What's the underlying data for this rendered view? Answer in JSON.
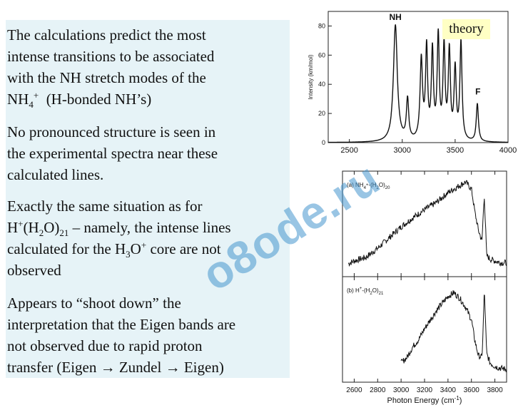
{
  "text": {
    "p1_line1": "The calculations predict the most",
    "p1_line2": "intense transitions to be associated",
    "p1_line3": "with the NH stretch modes of the",
    "p1_nh": "NH",
    "p1_sub4": "4",
    "p1_plus": "+",
    "p1_rest": "(H-bonded NH’s)",
    "p2_line1": "No pronounced structure is seen in",
    "p2_line2": "the experimental spectra near these",
    "p2_line3": "calculated lines.",
    "p3_line1": "Exactly the same situation as for",
    "p3_h": "H",
    "p3_plus": "+",
    "p3_h2o": "(H",
    "p3_sub2": "2",
    "p3_o": "O)",
    "p3_sub21": "21",
    "p3_tail": " – namely, the intense lines",
    "p3_l3a": "calculated for the H",
    "p3_l3sub": "3",
    "p3_l3o": "O",
    "p3_l3sup": "+",
    "p3_l3b": " core are not",
    "p3_line4": "observed",
    "p4_line1": "Appears to “shoot down” the",
    "p4_line2": "interpretation that the Eigen bands are",
    "p4_line3": "not observed due to rapid proton",
    "p4_line4": "transfer (Eigen → Zundel → Eigen)"
  },
  "watermark": "o8ode.ru",
  "theory_label": "theory",
  "chart_data": [
    {
      "type": "line",
      "ylabel": "Intensity (km/mol)",
      "xlim": [
        2300,
        4000
      ],
      "ylim": [
        0,
        90
      ],
      "xticks": [
        "2500",
        "3000",
        "3500",
        "4000"
      ],
      "yticks": [
        "0",
        "20",
        "40",
        "60",
        "80"
      ],
      "annotations": [
        "NH",
        "F"
      ],
      "peaks": [
        {
          "x": 2935,
          "y": 80,
          "w": 22
        },
        {
          "x": 3050,
          "y": 28,
          "w": 13
        },
        {
          "x": 3180,
          "y": 55,
          "w": 14
        },
        {
          "x": 3230,
          "y": 62,
          "w": 12
        },
        {
          "x": 3285,
          "y": 60,
          "w": 12
        },
        {
          "x": 3340,
          "y": 70,
          "w": 12
        },
        {
          "x": 3395,
          "y": 63,
          "w": 12
        },
        {
          "x": 3445,
          "y": 60,
          "w": 12
        },
        {
          "x": 3500,
          "y": 48,
          "w": 12
        },
        {
          "x": 3555,
          "y": 67,
          "w": 12
        },
        {
          "x": 3710,
          "y": 26,
          "w": 12
        }
      ]
    },
    {
      "type": "line",
      "series": [
        {
          "name": "NH4+-(H2O)20",
          "x": [
            2550,
            2600,
            2700,
            2800,
            2900,
            3000,
            3100,
            3200,
            3300,
            3400,
            3450,
            3500,
            3550,
            3600,
            3630,
            3660,
            3690,
            3700,
            3710,
            3730,
            3760,
            3800,
            3850,
            3900
          ],
          "y": [
            0.05,
            0.08,
            0.12,
            0.22,
            0.34,
            0.46,
            0.56,
            0.65,
            0.73,
            0.84,
            0.88,
            0.92,
            0.96,
            0.88,
            0.62,
            0.42,
            0.3,
            0.58,
            0.8,
            0.14,
            0.1,
            0.08,
            0.06,
            0.06
          ]
        },
        {
          "name": "H+-(H2O)21",
          "x": [
            3000,
            3050,
            3100,
            3150,
            3200,
            3250,
            3300,
            3350,
            3400,
            3450,
            3500,
            3550,
            3600,
            3630,
            3660,
            3690,
            3700,
            3710,
            3730,
            3760,
            3800,
            3850,
            3900
          ],
          "y": [
            0.12,
            0.18,
            0.3,
            0.38,
            0.5,
            0.6,
            0.7,
            0.78,
            0.86,
            0.9,
            0.84,
            0.74,
            0.6,
            0.36,
            0.2,
            0.18,
            0.5,
            0.94,
            0.22,
            0.12,
            0.08,
            0.06,
            0.05
          ]
        }
      ],
      "panel_a_label": "(a)",
      "panel_a_name": "NH",
      "panel_a_sub": "4",
      "panel_a_sup": "+",
      "panel_a_rest": "-(H",
      "panel_a_sub2": "2",
      "panel_a_rest2": "O)",
      "panel_a_sub3": "20",
      "panel_b_label": "(b)",
      "panel_b_name": "H",
      "panel_b_sup": "+",
      "panel_b_rest": "-(H",
      "panel_b_sub2": "2",
      "panel_b_rest2": "O)",
      "panel_b_sub3": "21",
      "xlabel": "Photon Energy (cm",
      "xlabel_sup": "-1",
      "xlabel_end": ")",
      "xlim": [
        2500,
        3900
      ],
      "xticks": [
        "2600",
        "2800",
        "3000",
        "3200",
        "3400",
        "3600",
        "3800"
      ]
    }
  ]
}
